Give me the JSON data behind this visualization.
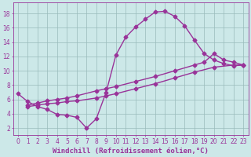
{
  "bg_color": "#cce8e8",
  "line_color": "#993399",
  "grid_color": "#99bbbb",
  "xlabel": "Windchill (Refroidissement éolien,°C)",
  "xlabel_color": "#993399",
  "xticks": [
    0,
    1,
    2,
    3,
    4,
    5,
    6,
    7,
    8,
    9,
    10,
    11,
    12,
    13,
    14,
    15,
    16,
    17,
    18,
    19,
    20,
    21,
    22,
    23
  ],
  "yticks": [
    2,
    4,
    6,
    8,
    10,
    12,
    14,
    16,
    18
  ],
  "xlim": [
    -0.5,
    23.5
  ],
  "ylim": [
    1.0,
    19.5
  ],
  "series1_x": [
    0,
    1,
    2,
    3,
    4,
    5,
    6,
    7,
    8,
    9,
    10,
    11,
    12,
    13,
    14,
    15,
    16,
    17,
    18,
    19,
    20,
    21,
    22,
    23
  ],
  "series1_y": [
    6.8,
    5.7,
    5.0,
    4.6,
    3.9,
    3.8,
    3.5,
    2.0,
    3.3,
    7.0,
    12.2,
    14.7,
    16.1,
    17.2,
    18.2,
    18.3,
    17.6,
    16.3,
    14.3,
    12.4,
    11.5,
    11.0,
    10.7,
    10.8
  ],
  "series2_x": [
    1,
    2,
    3,
    4,
    5,
    6,
    8,
    9,
    10,
    12,
    14,
    16,
    18,
    19,
    20,
    21,
    22,
    23
  ],
  "series2_y": [
    5.2,
    5.5,
    5.8,
    6.0,
    6.2,
    6.5,
    7.2,
    7.5,
    7.8,
    8.5,
    9.2,
    10.0,
    10.8,
    11.2,
    12.4,
    11.5,
    11.2,
    10.8
  ],
  "series3_x": [
    1,
    2,
    3,
    4,
    5,
    6,
    8,
    9,
    10,
    12,
    14,
    16,
    18,
    20,
    22,
    23
  ],
  "series3_y": [
    5.0,
    5.2,
    5.4,
    5.5,
    5.7,
    5.8,
    6.2,
    6.5,
    6.8,
    7.5,
    8.2,
    9.0,
    9.8,
    10.5,
    10.8,
    10.8
  ],
  "tick_fontsize": 5.5,
  "xlabel_fontsize": 6.5,
  "marker": "D",
  "markersize": 2.5,
  "linewidth": 1.0
}
